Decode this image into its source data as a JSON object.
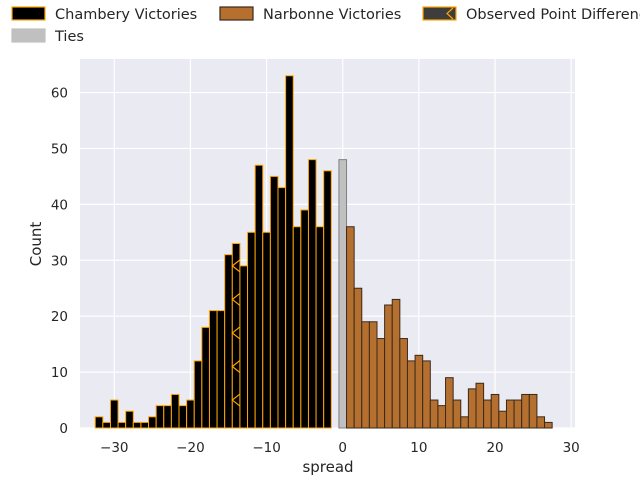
{
  "chart_data": {
    "type": "bar",
    "xlabel": "spread",
    "ylabel": "Count",
    "xlim": [
      -34.5,
      30.5
    ],
    "ylim": [
      0,
      66
    ],
    "bin_width": 1,
    "x_ticks": [
      -30,
      -20,
      -10,
      0,
      10,
      20,
      30
    ],
    "y_ticks": [
      0,
      10,
      20,
      30,
      40,
      50,
      60
    ],
    "x_tick_labels": [
      "−30",
      "−20",
      "−10",
      "0",
      "10",
      "20",
      "30"
    ],
    "y_tick_labels": [
      "0",
      "10",
      "20",
      "30",
      "40",
      "50",
      "60"
    ],
    "grid": true,
    "background": "#eaeaf2",
    "legend_position": "top",
    "legend": [
      {
        "label": "Chambery Victories",
        "fill": "#000000",
        "edge": "#ffa500"
      },
      {
        "label": "Narbonne Victories",
        "fill": "#b5702f",
        "edge": "#3a2a1a"
      },
      {
        "label": "Observed Point Difference",
        "fill": "#3d3d3d",
        "edge": "#ffa500",
        "hatch": true
      },
      {
        "label": "Ties",
        "fill": "#c0c0c0",
        "edge": "#c0c0c0"
      }
    ],
    "series": [
      {
        "name": "Chambery Victories",
        "color": "#000000",
        "edge": "#ffa500",
        "x": [
          -32,
          -31,
          -30,
          -29,
          -28,
          -27,
          -26,
          -25,
          -24,
          -23,
          -22,
          -21,
          -20,
          -19,
          -18,
          -17,
          -16,
          -15,
          -14,
          -13,
          -12,
          -11,
          -10,
          -9,
          -8,
          -7,
          -6,
          -5,
          -4,
          -3,
          -2,
          -1
        ],
        "values": [
          2,
          1,
          5,
          1,
          3,
          1,
          1,
          2,
          4,
          4,
          6,
          4,
          5,
          12,
          18,
          21,
          21,
          31,
          33,
          29,
          35,
          47,
          35,
          45,
          43,
          63,
          36,
          39,
          48,
          36,
          46,
          0
        ]
      },
      {
        "name": "Ties",
        "color": "#c0c0c0",
        "edge": "#808080",
        "x": [
          0
        ],
        "values": [
          48
        ]
      },
      {
        "name": "Narbonne Victories",
        "color": "#b5702f",
        "edge": "#3a2a1a",
        "x": [
          1,
          2,
          3,
          4,
          5,
          6,
          7,
          8,
          9,
          10,
          11,
          12,
          13,
          14,
          15,
          16,
          17,
          18,
          19,
          20,
          21,
          22,
          23,
          24,
          25,
          26,
          27
        ],
        "values": [
          36,
          25,
          19,
          19,
          16,
          22,
          23,
          16,
          12,
          13,
          12,
          5,
          4,
          9,
          5,
          2,
          7,
          8,
          5,
          6,
          3,
          5,
          5,
          6,
          6,
          2,
          1
        ]
      }
    ],
    "observed_point_difference": {
      "x_start": -14.5,
      "x_end": -13.5,
      "marker": "<",
      "marker_color": "#ffa500",
      "marker_y": [
        5,
        11,
        17,
        23,
        29
      ]
    }
  }
}
